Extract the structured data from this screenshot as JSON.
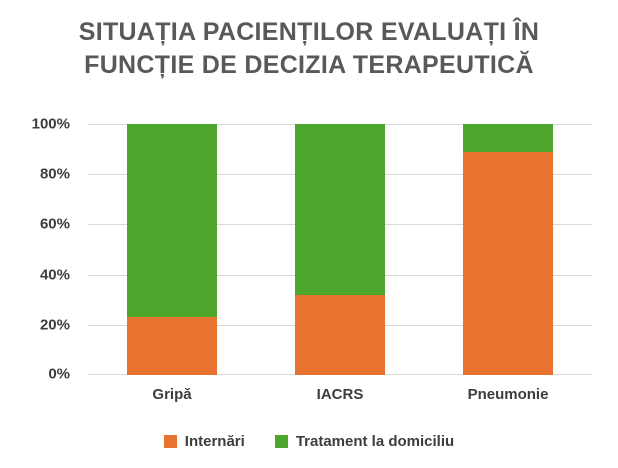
{
  "chart_data": {
    "type": "bar",
    "stacked": true,
    "orientation": "vertical",
    "title": "SITUAȚIA PACIENȚILOR EVALUAȚI ÎN FUNCȚIE DE DECIZIA TERAPEUTICĂ",
    "categories": [
      "Gripă",
      "IACRS",
      "Pneumonie"
    ],
    "series": [
      {
        "name": "Internări",
        "color": "#E87331",
        "values": [
          23,
          32,
          89
        ]
      },
      {
        "name": "Tratament la domiciliu",
        "color": "#4DA62B",
        "values": [
          77,
          68,
          11
        ]
      }
    ],
    "ylabel": "",
    "xlabel": "",
    "ylim": [
      0,
      100
    ],
    "y_ticks": [
      "0%",
      "20%",
      "40%",
      "60%",
      "80%",
      "100%"
    ],
    "grid": true,
    "gridline_color": "#D9D9D9",
    "legend_position": "bottom",
    "title_color": "#595959",
    "axis_label_color": "#3D3D3D",
    "background_color": "#FFFFFF"
  }
}
